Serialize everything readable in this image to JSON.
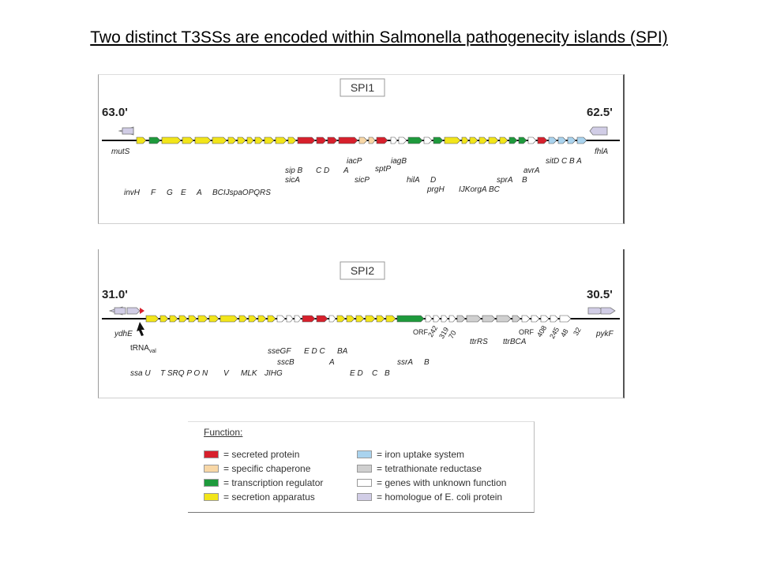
{
  "title": "Two distinct T3SSs are encoded within Salmonella pathogenecity islands (SPI)",
  "colors": {
    "secreted": "#d7202c",
    "chaperone": "#f8d7a6",
    "regulator": "#1e9a3c",
    "apparatus": "#f2e51a",
    "iron": "#a9d3ee",
    "tetrathionate": "#cfcfcf",
    "unknown": "#ffffff",
    "ecoli": "#d1cde6"
  },
  "spi1": {
    "label": "SPI1",
    "left_position": "63.0'",
    "right_position": "62.5'",
    "genes_row1": [
      "mutS",
      "fhlA"
    ],
    "genes_row2": [
      "iacP",
      "sptP",
      "iagB",
      "sitD C B A"
    ],
    "genes_row3": [
      "sip B",
      "C D",
      "A",
      "avrA"
    ],
    "genes_row4": [
      "sicA",
      "sicP",
      "hilA",
      "D",
      "sprA",
      "B"
    ],
    "genes_row5": [
      "invH",
      "F",
      "G",
      "E",
      "A",
      "BCIJspaOPQRS",
      "prgH",
      "IJKorgA BC"
    ]
  },
  "spi2": {
    "label": "SPI2",
    "left_position": "31.0'",
    "right_position": "30.5'",
    "gene_left": "ydhE",
    "gene_right": "pykF",
    "trna": "tRNA",
    "trna_sub": "val",
    "orf_left": [
      "ORF",
      "242",
      "319",
      "70"
    ],
    "orf_right": [
      "ORF",
      "408",
      "245",
      "48",
      "32"
    ],
    "labels_row1": [
      "sseGF",
      "E D C",
      "BA"
    ],
    "labels_row2": [
      "sscB",
      "A",
      "ssrA",
      "B",
      "ttrRS",
      "ttrBCA"
    ],
    "labels_row3": [
      "ssa U",
      "T SRQ P O N",
      "V",
      "MLK",
      "JIHG",
      "E D",
      "C",
      "B"
    ]
  },
  "legend": {
    "title": "Function:",
    "items": [
      {
        "color_key": "secreted",
        "text": "= secreted protein"
      },
      {
        "color_key": "chaperone",
        "text": "= specific chaperone"
      },
      {
        "color_key": "regulator",
        "text": "= transcription regulator"
      },
      {
        "color_key": "apparatus",
        "text": "= secretion apparatus"
      },
      {
        "color_key": "iron",
        "text": "= iron uptake system"
      },
      {
        "color_key": "tetrathionate",
        "text": "= tetrathionate reductase"
      },
      {
        "color_key": "unknown",
        "text": "= genes with unknown function"
      },
      {
        "color_key": "ecoli",
        "text": "= homologue of E. coli protein"
      }
    ]
  }
}
